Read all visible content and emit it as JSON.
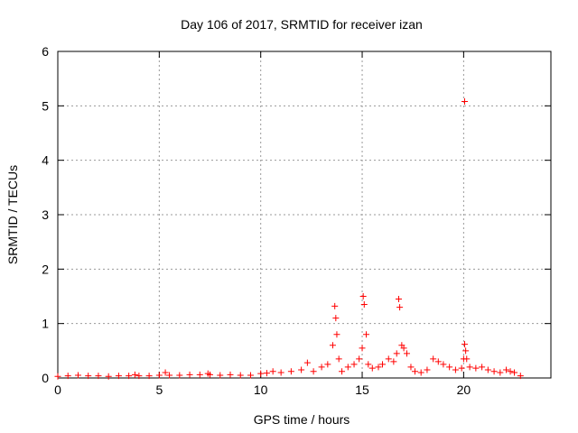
{
  "chart_data": {
    "type": "scatter",
    "title": "Day 106 of 2017, SRMTID for receiver izan",
    "xlabel": "GPS time / hours",
    "ylabel": "SRMTID / TECUs",
    "xlim": [
      0,
      24.3
    ],
    "ylim": [
      0,
      6
    ],
    "xticks": [
      "0",
      "5",
      "10",
      "15",
      "20"
    ],
    "yticks": [
      "0",
      "1",
      "2",
      "3",
      "4",
      "5",
      "6"
    ],
    "grid": true,
    "marker": "+",
    "color": "#ff0000",
    "series": [
      {
        "x": [
          0.0,
          0.5,
          1.0,
          1.5,
          2.0,
          2.5,
          3.0,
          3.5,
          3.8,
          4.0,
          4.5,
          5.0,
          5.3,
          5.5,
          6.0,
          6.5,
          7.0,
          7.4,
          7.5,
          8.0,
          8.5,
          9.0,
          9.5,
          10.0,
          10.3,
          10.6,
          11.0,
          11.5,
          12.0,
          12.3,
          12.6,
          13.0,
          13.3,
          13.55,
          13.65,
          13.7,
          13.75,
          13.85,
          14.0,
          14.3,
          14.6,
          14.85,
          15.0,
          15.05,
          15.1,
          15.2,
          15.3,
          15.5,
          15.8,
          16.0,
          16.3,
          16.55,
          16.7,
          16.8,
          16.85,
          16.95,
          17.05,
          17.2,
          17.4,
          17.6,
          17.9,
          18.2,
          18.5,
          18.75,
          19.0,
          19.3,
          19.6,
          19.9,
          20.0,
          20.05,
          20.1,
          20.15,
          20.3,
          20.6,
          20.9,
          21.2,
          21.5,
          21.8,
          22.1,
          22.3,
          22.5,
          22.8
        ],
        "y": [
          0.03,
          0.04,
          0.05,
          0.04,
          0.04,
          0.03,
          0.04,
          0.04,
          0.06,
          0.04,
          0.04,
          0.05,
          0.1,
          0.05,
          0.05,
          0.06,
          0.06,
          0.08,
          0.06,
          0.05,
          0.06,
          0.05,
          0.05,
          0.08,
          0.09,
          0.12,
          0.1,
          0.12,
          0.15,
          0.28,
          0.12,
          0.2,
          0.25,
          0.6,
          1.32,
          1.1,
          0.8,
          0.35,
          0.12,
          0.2,
          0.25,
          0.35,
          0.55,
          1.5,
          1.35,
          0.8,
          0.25,
          0.18,
          0.2,
          0.25,
          0.35,
          0.3,
          0.45,
          1.45,
          1.3,
          0.6,
          0.55,
          0.45,
          0.2,
          0.12,
          0.1,
          0.15,
          0.35,
          0.3,
          0.25,
          0.2,
          0.15,
          0.18,
          0.35,
          0.62,
          0.5,
          0.35,
          0.2,
          0.18,
          0.2,
          0.15,
          0.12,
          0.1,
          0.15,
          0.12,
          0.1,
          0.04
        ]
      },
      {
        "x": [
          20.05
        ],
        "y": [
          5.08
        ]
      }
    ]
  }
}
